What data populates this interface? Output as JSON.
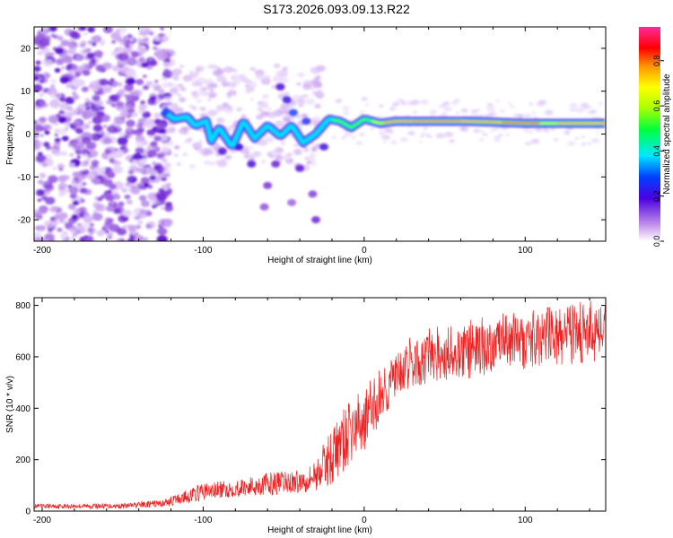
{
  "figure": {
    "title": "S173.2026.093.09.13.R22"
  },
  "chart_data": [
    {
      "type": "heatmap",
      "xlabel": "Height of straight line (km)",
      "ylabel": "Frequency (Hz)",
      "xlim": [
        -205,
        150
      ],
      "ylim": [
        -25,
        25
      ],
      "xticks": [
        -200,
        -100,
        0,
        100
      ],
      "xtick_labels": [
        "-200",
        "-100",
        "0",
        "100"
      ],
      "yticks": [
        -20,
        -10,
        0,
        10,
        20
      ],
      "ytick_labels": [
        "-20",
        "-10",
        "0",
        "10",
        "20"
      ],
      "ridge": [
        {
          "x": -125,
          "y": 5.5
        },
        {
          "x": -118,
          "y": 3.5
        },
        {
          "x": -110,
          "y": 4
        },
        {
          "x": -105,
          "y": 2
        },
        {
          "x": -98,
          "y": 3
        },
        {
          "x": -95,
          "y": -1.5
        },
        {
          "x": -90,
          "y": 1.5
        },
        {
          "x": -82,
          "y": -3
        },
        {
          "x": -75,
          "y": 3
        },
        {
          "x": -68,
          "y": -1
        },
        {
          "x": -60,
          "y": 2
        },
        {
          "x": -52,
          "y": -0.5
        },
        {
          "x": -45,
          "y": 2
        },
        {
          "x": -38,
          "y": -2
        },
        {
          "x": -30,
          "y": 0
        },
        {
          "x": -22,
          "y": 3.5
        },
        {
          "x": -15,
          "y": 3
        },
        {
          "x": -8,
          "y": 1.5
        },
        {
          "x": 0,
          "y": 3.5
        },
        {
          "x": 10,
          "y": 2.5
        },
        {
          "x": 20,
          "y": 3
        },
        {
          "x": 40,
          "y": 3
        },
        {
          "x": 60,
          "y": 3
        },
        {
          "x": 80,
          "y": 2.8
        },
        {
          "x": 100,
          "y": 2.5
        },
        {
          "x": 120,
          "y": 2.5
        },
        {
          "x": 150,
          "y": 2.5
        }
      ],
      "colorbar": {
        "label": "Normalized spectral amplitude",
        "range": [
          0,
          0.95
        ],
        "ticks": [
          0.0,
          0.2,
          0.4,
          0.6,
          0.8
        ],
        "tick_labels": [
          "0.0",
          "0.2",
          "0.4",
          "0.6",
          "0.8"
        ]
      }
    },
    {
      "type": "line",
      "xlabel": "Height of straight line (km)",
      "ylabel": "SNR (10 * v/v)",
      "xlim": [
        -205,
        150
      ],
      "ylim": [
        0,
        830
      ],
      "xticks": [
        -200,
        -100,
        0,
        100
      ],
      "xtick_labels": [
        "-200",
        "-100",
        "0",
        "100"
      ],
      "yticks": [
        0,
        200,
        400,
        600,
        800
      ],
      "ytick_labels": [
        "0",
        "200",
        "400",
        "600",
        "800"
      ],
      "series": [
        {
          "name": "SNR",
          "color": "#ee2222",
          "envelope": {
            "x": [
              -205,
              -150,
              -125,
              -115,
              -100,
              -80,
              -60,
              -40,
              -30,
              -20,
              -10,
              0,
              10,
              20,
              30,
              50,
              70,
              100,
              130,
              150
            ],
            "low": [
              10,
              10,
              15,
              25,
              40,
              55,
              60,
              70,
              80,
              100,
              170,
              230,
              330,
              440,
              480,
              500,
              520,
              550,
              570,
              580
            ],
            "high": [
              28,
              30,
              45,
              70,
              110,
              120,
              150,
              160,
              200,
              330,
              420,
              480,
              560,
              620,
              660,
              700,
              720,
              760,
              790,
              800
            ]
          }
        }
      ]
    }
  ],
  "colors": {
    "line": "#ee2222",
    "background": "#ffffff",
    "axis": "#000000"
  }
}
